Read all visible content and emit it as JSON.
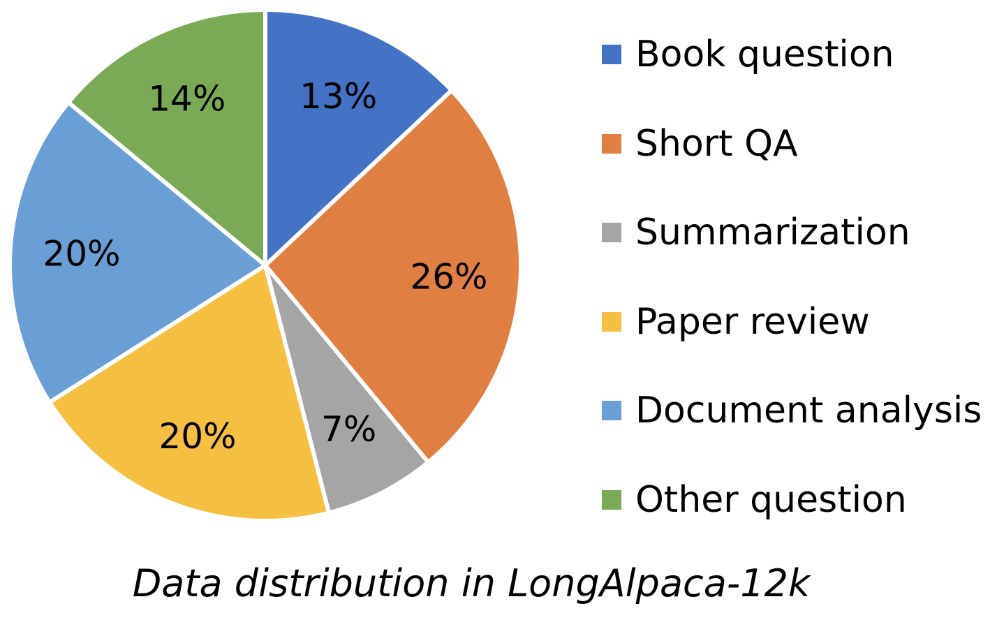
{
  "chart_data": {
    "type": "pie",
    "title": "Data distribution in LongAlpaca-12k",
    "legend_position": "right",
    "slices": [
      {
        "name": "Book question",
        "value": 13,
        "label": "13%",
        "color": "#4472C4"
      },
      {
        "name": "Short QA",
        "value": 26,
        "label": "26%",
        "color": "#E07F42"
      },
      {
        "name": "Summarization",
        "value": 7,
        "label": "7%",
        "color": "#A5A5A5"
      },
      {
        "name": "Paper review",
        "value": 20,
        "label": "20%",
        "color": "#F5BF42"
      },
      {
        "name": "Document analysis",
        "value": 20,
        "label": "20%",
        "color": "#699FD4"
      },
      {
        "name": "Other question",
        "value": 14,
        "label": "14%",
        "color": "#7AAA55"
      }
    ]
  }
}
